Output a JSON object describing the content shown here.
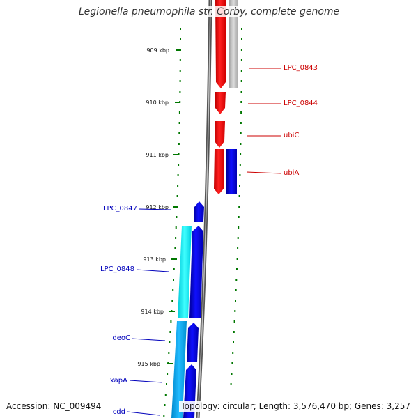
{
  "title": "Legionella pneumophila str. Corby, complete genome",
  "accession": "Accession: NC_009494",
  "topology": "Topology: circular; Length: 3,576,470 bp; Genes: 3,257",
  "ticks": [
    "909 kbp",
    "910 kbp",
    "911 kbp",
    "912 kbp",
    "913 kbp",
    "914 kbp",
    "915 kbp"
  ],
  "genes": [
    {
      "label": "LPC_0843",
      "color": "#cc0000",
      "side": "right"
    },
    {
      "label": "LPC_0844",
      "color": "#cc0000",
      "side": "right"
    },
    {
      "label": "ubiC",
      "color": "#cc0000",
      "side": "right"
    },
    {
      "label": "ubiA",
      "color": "#cc0000",
      "side": "right"
    },
    {
      "label": "LPC_0847",
      "color": "#0000bb",
      "side": "left"
    },
    {
      "label": "LPC_0848",
      "color": "#0000bb",
      "side": "left"
    },
    {
      "label": "deoC",
      "color": "#0000bb",
      "side": "left"
    },
    {
      "label": "xapA",
      "color": "#0000bb",
      "side": "left"
    },
    {
      "label": "cdd",
      "color": "#0000bb",
      "side": "left"
    }
  ],
  "colors": {
    "forward_strand": "#ff0000",
    "reverse_strand": "#0000ee",
    "cyan_feature": "#00e6ee",
    "light_blue_feature": "#00aaee",
    "grey_feature": "#b5b5b5",
    "tick": "#007700",
    "backbone": "#808080"
  }
}
